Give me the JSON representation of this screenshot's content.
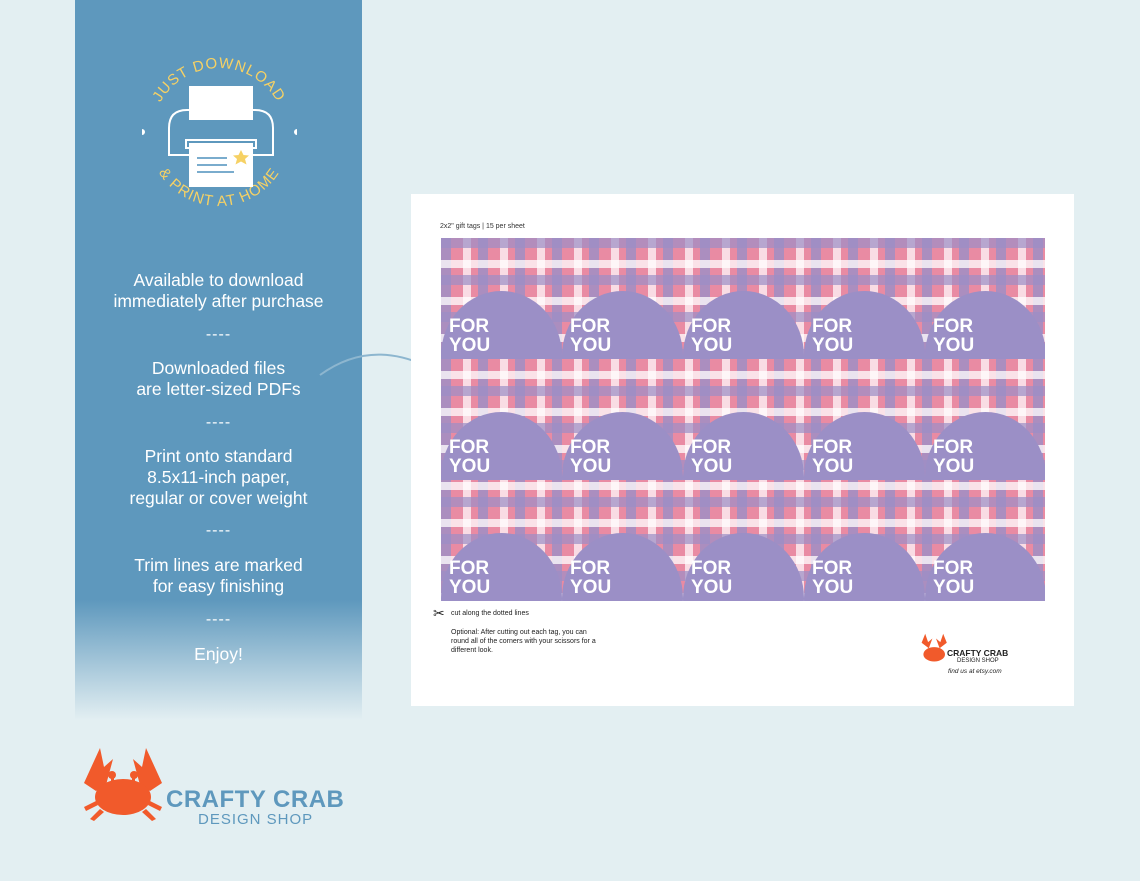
{
  "badge": {
    "arc_top": "JUST DOWNLOAD",
    "arc_bottom": "& PRINT AT HOME",
    "icon": "printer-icon",
    "accent": "#f6d164"
  },
  "info": {
    "blocks": [
      {
        "line1": "Available to download",
        "line2": "immediately after purchase"
      },
      {
        "line1": "Downloaded files",
        "line2": "are letter-sized PDFs"
      },
      {
        "line1": "Print onto standard",
        "line2": "8.5x11-inch paper,",
        "line3": "regular or cover weight"
      },
      {
        "line1": "Trim lines are marked",
        "line2": "for easy finishing"
      },
      {
        "line1": "Enjoy!"
      }
    ],
    "separator": "----"
  },
  "sheet": {
    "caption": "2x2\" gift tags  |  15 per sheet",
    "tag_line1": "FOR",
    "tag_line2": "YOU",
    "tag_rows": 3,
    "tag_cols": 5,
    "cut_note": "cut along the dotted lines",
    "optional_note": "Optional: After cutting out each tag, you can round all of the corners with your scissors for a different look.",
    "brand": "CRAFTY CRAB",
    "brand_sub": "DESIGN SHOP",
    "etsy": "find us at etsy.com"
  },
  "brand": {
    "name": "CRAFTY CRAB",
    "sub": "DESIGN SHOP",
    "color": "#5e98bd",
    "crab_color": "#f15a2b"
  },
  "colors": {
    "panel": "#5e98bd",
    "plaid_pink": "#e98ba3",
    "plaid_purple": "#9b8fc6",
    "background": "#e3eff2"
  }
}
